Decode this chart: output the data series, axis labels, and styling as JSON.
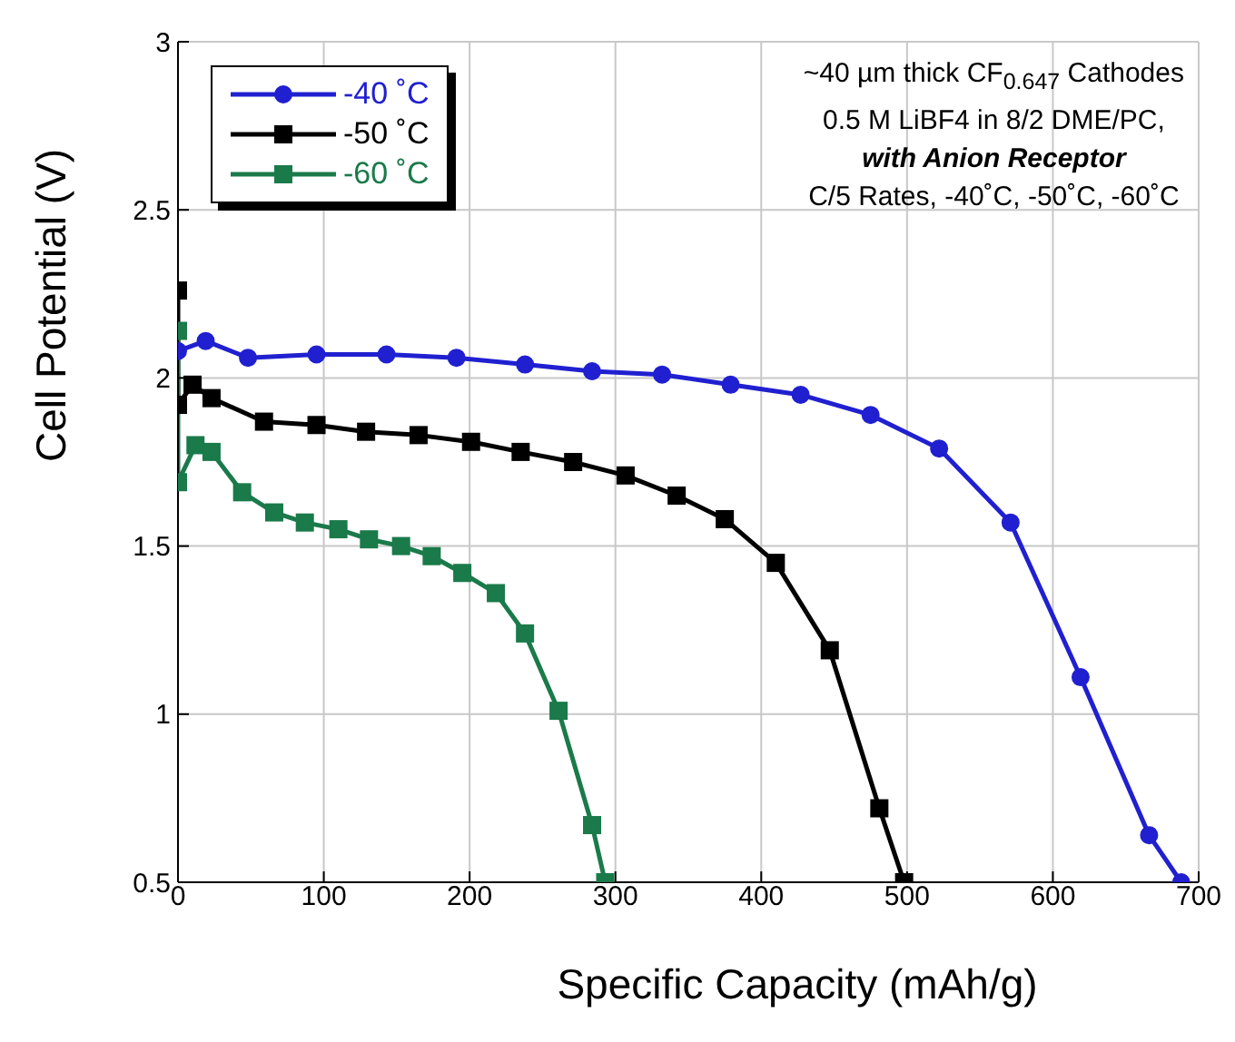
{
  "chart_data": {
    "type": "line",
    "xlabel": "Specific Capacity (mAh/g)",
    "ylabel": "Cell Potential (V)",
    "annotations": [
      "~40 µm thick CF$_{0.647}$ Cathodes",
      "0.5 M LiBF4 in 8/2 DME/PC,",
      "with Anion Receptor",
      "C/5 Rates, -40˚C, -50˚C, -60˚C"
    ],
    "xlim": [
      0,
      700
    ],
    "xticks": [
      0,
      100,
      200,
      300,
      400,
      500,
      600,
      700
    ],
    "ylim": [
      0.5,
      3
    ],
    "yticks": [
      0.5,
      1,
      1.5,
      2,
      2.5,
      3
    ],
    "grid": true,
    "legend": "top left",
    "line_style": "solid",
    "series": [
      {
        "name": "-40 ˚C",
        "color": "#2020d0",
        "marker": "circle",
        "x": [
          0,
          19,
          48,
          95,
          143,
          191,
          238,
          284,
          332,
          379,
          427,
          475,
          522,
          571,
          619,
          666,
          688
        ],
        "values": [
          2.08,
          2.11,
          2.06,
          2.07,
          2.07,
          2.06,
          2.04,
          2.02,
          2.01,
          1.98,
          1.95,
          1.89,
          1.79,
          1.57,
          1.11,
          0.64,
          0.5
        ]
      },
      {
        "name": "-50 ˚C",
        "color": "#000000",
        "marker": "square",
        "x": [
          0,
          0,
          10,
          23,
          59,
          95,
          129,
          165,
          201,
          235,
          271,
          307,
          342,
          375,
          410,
          447,
          481,
          498
        ],
        "values": [
          2.26,
          1.92,
          1.98,
          1.94,
          1.87,
          1.86,
          1.84,
          1.83,
          1.81,
          1.78,
          1.75,
          1.71,
          1.65,
          1.58,
          1.45,
          1.19,
          0.72,
          0.5
        ]
      },
      {
        "name": "-60 ˚C",
        "color": "#1a7a4a",
        "marker": "square",
        "x": [
          0,
          0,
          12,
          23,
          44,
          66,
          87,
          110,
          131,
          153,
          174,
          195,
          218,
          238,
          261,
          284,
          293
        ],
        "values": [
          2.14,
          1.69,
          1.8,
          1.78,
          1.66,
          1.6,
          1.57,
          1.55,
          1.52,
          1.5,
          1.47,
          1.42,
          1.36,
          1.24,
          1.01,
          0.67,
          0.5
        ]
      }
    ]
  }
}
